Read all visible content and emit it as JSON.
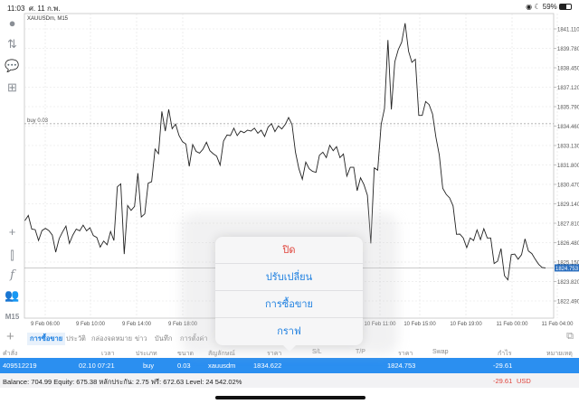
{
  "status_bar": {
    "time": "11:03",
    "date": "ศ. 11 ก.พ.",
    "battery": "59%",
    "icons": [
      "wifi-icon",
      "moon-icon",
      "battery-icon"
    ]
  },
  "sidebar": {
    "icons": [
      "account-icon",
      "trade-arrows-icon",
      "chat-icon",
      "new-document-icon",
      "crosshair-icon",
      "candlestick-icon",
      "function-icon",
      "people-icon"
    ],
    "timeframe": "M15"
  },
  "chart_data": {
    "type": "line",
    "title": "XAUUSDm, M15",
    "yticks": [
      1841.11,
      1839.78,
      1838.45,
      1837.12,
      1835.79,
      1834.46,
      1833.13,
      1831.8,
      1830.47,
      1829.14,
      1827.81,
      1826.48,
      1825.15,
      1823.82,
      1822.49
    ],
    "ytick_labels": [
      "1841.110",
      "1839.780",
      "1838.450",
      "1837.120",
      "1835.790",
      "1834.460",
      "1833.130",
      "1831.800",
      "1830.470",
      "1829.140",
      "1827.810",
      "1826.480",
      "1825.150",
      "1823.820",
      "1822.490"
    ],
    "xtick_labels": [
      "9 Feb 06:00",
      "9 Feb 10:00",
      "9 Feb 14:00",
      "9 Feb 18:00",
      "10 Feb 11:00",
      "10 Feb 15:00",
      "10 Feb 19:00",
      "11 Feb 00:00",
      "11 Feb 04:00"
    ],
    "ylim": [
      1821.6,
      1842.1
    ],
    "grid": true,
    "buy_line": {
      "label": "buy 0.03",
      "price": 1834.622
    },
    "current_price": {
      "label": "1824.753",
      "price": 1824.753
    },
    "values": [
      1827.99,
      1828.34,
      1827.41,
      1827.37,
      1826.63,
      1827.31,
      1827.46,
      1827.31,
      1827.0,
      1825.83,
      1826.75,
      1827.21,
      1827.62,
      1826.43,
      1827.0,
      1827.41,
      1827.29,
      1827.68,
      1827.29,
      1827.5,
      1826.96,
      1826.84,
      1826.18,
      1826.59,
      1826.34,
      1827.25,
      1826.63,
      1830.3,
      1830.51,
      1825.7,
      1829.02,
      1828.69,
      1828.96,
      1831.23,
      1828.24,
      1828.45,
      1830.55,
      1830.65,
      1832.88,
      1832.57,
      1835.46,
      1834.12,
      1835.6,
      1834.28,
      1834.59,
      1833.81,
      1833.39,
      1833.23,
      1831.7,
      1833.19,
      1832.73,
      1832.61,
      1832.88,
      1833.35,
      1832.78,
      1832.57,
      1832.4,
      1831.79,
      1833.44,
      1833.85,
      1833.81,
      1834.32,
      1833.81,
      1834.12,
      1834.01,
      1834.18,
      1834.12,
      1834.32,
      1833.97,
      1834.18,
      1833.75,
      1834.38,
      1834.63,
      1834.08,
      1834.47,
      1834.26,
      1834.57,
      1835.05,
      1834.57,
      1832.67,
      1831.54,
      1830.82,
      1831.99,
      1831.54,
      1831.36,
      1831.29,
      1832.47,
      1832.67,
      1832.3,
      1833.15,
      1832.78,
      1833.05,
      1832.3,
      1832.55,
      1831.03,
      1831.64,
      1831.64,
      1830.04,
      1830.92,
      1830.45,
      1829.73,
      1826.43,
      1831.6,
      1831.44,
      1834.57,
      1835.66,
      1840.35,
      1835.6,
      1838.86,
      1839.69,
      1840.2,
      1841.5,
      1839.58,
      1838.82,
      1839.03,
      1835.19,
      1835.19,
      1836.14,
      1835.93,
      1835.29,
      1833.71,
      1832.47,
      1830.2,
      1829.79,
      1829.54,
      1829.0,
      1827.05,
      1827.07,
      1826.8,
      1826.14,
      1826.8,
      1826.63,
      1827.35,
      1826.69,
      1827.44,
      1826.8,
      1826.8,
      1825.05,
      1825.21,
      1826.08,
      1824.22,
      1823.93,
      1825.66,
      1825.7,
      1825.35,
      1825.66,
      1826.74,
      1825.91,
      1825.73,
      1825.35,
      1825.0,
      1824.78,
      1824.753
    ],
    "line_color": "#222222"
  },
  "tabs": {
    "add_icon": "plus-icon",
    "items": [
      {
        "label": "การซื้อขาย",
        "active": true
      },
      {
        "label": "ประวัติ"
      },
      {
        "label": "กล่องจดหมาย"
      },
      {
        "label": "ข่าว"
      },
      {
        "label": "บันทึก"
      },
      {
        "label": "การตั้งค่า"
      }
    ],
    "right_icon": "layout-icon"
  },
  "table": {
    "headers": [
      "คำสั่ง",
      "เวลา",
      "ประเภท",
      "ขนาด",
      "สัญลักษณ์",
      "ราคา",
      "S/L",
      "T/P",
      "ราคา",
      "Swap",
      "กำไร",
      "หมายเหตุ"
    ],
    "rows": [
      {
        "order": "409512219",
        "time": "02.10 07:21",
        "type": "buy",
        "size": "0.03",
        "symbol": "xauusdm",
        "open_price": "1834.622",
        "current_price": "1824.753",
        "profit": "-29.61"
      }
    ]
  },
  "balance": {
    "text": "Balance: 704.99 Equity: 675.38 หลักประกัน: 2.75 ฟรี: 672.63 Level: 24 542.02%",
    "profit": "-29.61",
    "currency": "USD",
    "profit_color": "#e0433a"
  },
  "popup": {
    "items": [
      {
        "label": "ปิด",
        "color": "#e0433a"
      },
      {
        "label": "ปรับเปลี่ยน"
      },
      {
        "label": "การซื้อขาย"
      },
      {
        "label": "กราฟ"
      }
    ]
  },
  "colors": {
    "accent": "#2b8ff0",
    "selected_row": "#2b8ff0"
  }
}
